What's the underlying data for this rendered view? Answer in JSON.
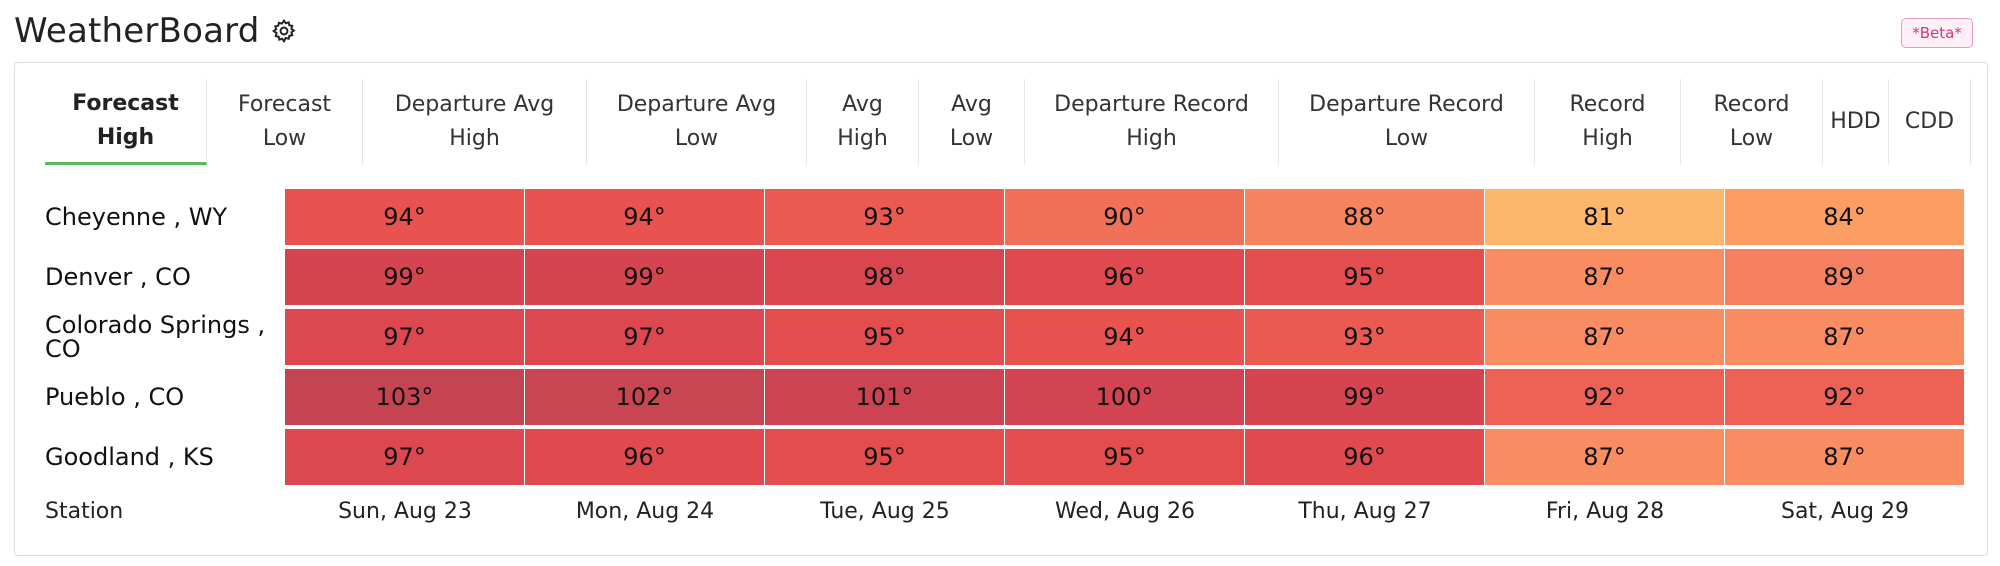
{
  "app": {
    "title": "WeatherBoard",
    "badge": "*Beta*"
  },
  "icons": {
    "settings": "gear-icon"
  },
  "tabs": [
    {
      "label": "Forecast\nHigh",
      "active": true,
      "width": 162
    },
    {
      "label": "Forecast\nLow",
      "active": false,
      "width": 156
    },
    {
      "label": "Departure Avg\nHigh",
      "active": false,
      "width": 224
    },
    {
      "label": "Departure Avg\nLow",
      "active": false,
      "width": 220
    },
    {
      "label": "Avg\nHigh",
      "active": false,
      "width": 112
    },
    {
      "label": "Avg\nLow",
      "active": false,
      "width": 106
    },
    {
      "label": "Departure Record\nHigh",
      "active": false,
      "width": 254
    },
    {
      "label": "Departure Record\nLow",
      "active": false,
      "width": 256
    },
    {
      "label": "Record\nHigh",
      "active": false,
      "width": 146
    },
    {
      "label": "Record\nLow",
      "active": false,
      "width": 142
    },
    {
      "label": "HDD",
      "active": false,
      "width": 66
    },
    {
      "label": "CDD",
      "active": false,
      "width": 82
    }
  ],
  "table": {
    "station_header": "Station",
    "dates": [
      "Sun, Aug 23",
      "Mon, Aug 24",
      "Tue, Aug 25",
      "Wed, Aug 26",
      "Thu, Aug 27",
      "Fri, Aug 28",
      "Sat, Aug 29"
    ],
    "rows": [
      {
        "station": "Cheyenne , WY",
        "values": [
          "94°",
          "94°",
          "93°",
          "90°",
          "88°",
          "81°",
          "84°"
        ],
        "colors": [
          "#e8524f",
          "#e8524f",
          "#ea5a50",
          "#f1705a",
          "#f6855f",
          "#feb56c",
          "#fc9e64"
        ]
      },
      {
        "station": "Denver , CO",
        "values": [
          "99°",
          "99°",
          "98°",
          "96°",
          "95°",
          "87°",
          "89°"
        ],
        "colors": [
          "#d6444f",
          "#d6444f",
          "#da4650",
          "#e04a4f",
          "#e44d4e",
          "#f98d61",
          "#f58061"
        ]
      },
      {
        "station": "Colorado Springs , CO",
        "values": [
          "97°",
          "97°",
          "95°",
          "94°",
          "93°",
          "87°",
          "87°"
        ],
        "colors": [
          "#dd4850",
          "#dd4850",
          "#e44d4e",
          "#e8524f",
          "#ea5a50",
          "#f98d61",
          "#f98d61"
        ]
      },
      {
        "station": "Pueblo , CO",
        "values": [
          "103°",
          "102°",
          "101°",
          "100°",
          "99°",
          "92°",
          "92°"
        ],
        "colors": [
          "#c44452",
          "#c84552",
          "#cc4452",
          "#d24452",
          "#d6444f",
          "#ee6255",
          "#ee6255"
        ]
      },
      {
        "station": "Goodland , KS",
        "values": [
          "97°",
          "96°",
          "95°",
          "95°",
          "96°",
          "87°",
          "87°"
        ],
        "colors": [
          "#dd4850",
          "#e04a4f",
          "#e44d4e",
          "#e44d4e",
          "#e04a4f",
          "#f98d61",
          "#f98d61"
        ]
      }
    ]
  }
}
